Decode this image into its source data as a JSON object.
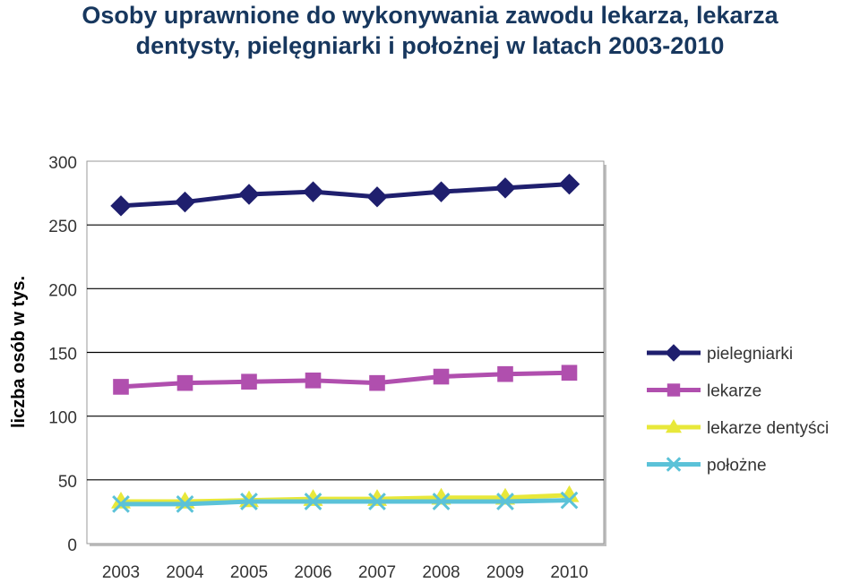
{
  "title_line1": "Osoby uprawnione do wykonywania zawodu lekarza, lekarza",
  "title_line2": "dentysty, pielęgniarki i położnej w latach 2003-2010",
  "chart_data": {
    "type": "line",
    "title": "Osoby uprawnione do wykonywania zawodu lekarza, lekarza dentysty, pielęgniarki i położnej w latach 2003-2010",
    "xlabel": "",
    "ylabel": "liczba osób w tys.",
    "x": [
      "2003",
      "2004",
      "2005",
      "2006",
      "2007",
      "2008",
      "2009",
      "2010"
    ],
    "yticks": [
      "0",
      "50",
      "100",
      "150",
      "200",
      "250",
      "300"
    ],
    "ylim": [
      0,
      300
    ],
    "grid": true,
    "legend_position": "right",
    "series": [
      {
        "name": "pielegniarki",
        "color": "#1f1f6e",
        "marker": "diamond",
        "values": [
          265,
          268,
          274,
          276,
          272,
          276,
          279,
          282
        ]
      },
      {
        "name": "lekarze",
        "color": "#b04fae",
        "marker": "square",
        "values": [
          123,
          126,
          127,
          128,
          126,
          131,
          133,
          134
        ]
      },
      {
        "name": "lekarze dentyści",
        "color": "#e8e83a",
        "marker": "triangle",
        "values": [
          33,
          33,
          34,
          35,
          35,
          36,
          36,
          38
        ]
      },
      {
        "name": "położne",
        "color": "#5bc2d8",
        "marker": "x",
        "values": [
          31,
          31,
          33,
          33,
          33,
          33,
          33,
          34
        ]
      }
    ]
  }
}
